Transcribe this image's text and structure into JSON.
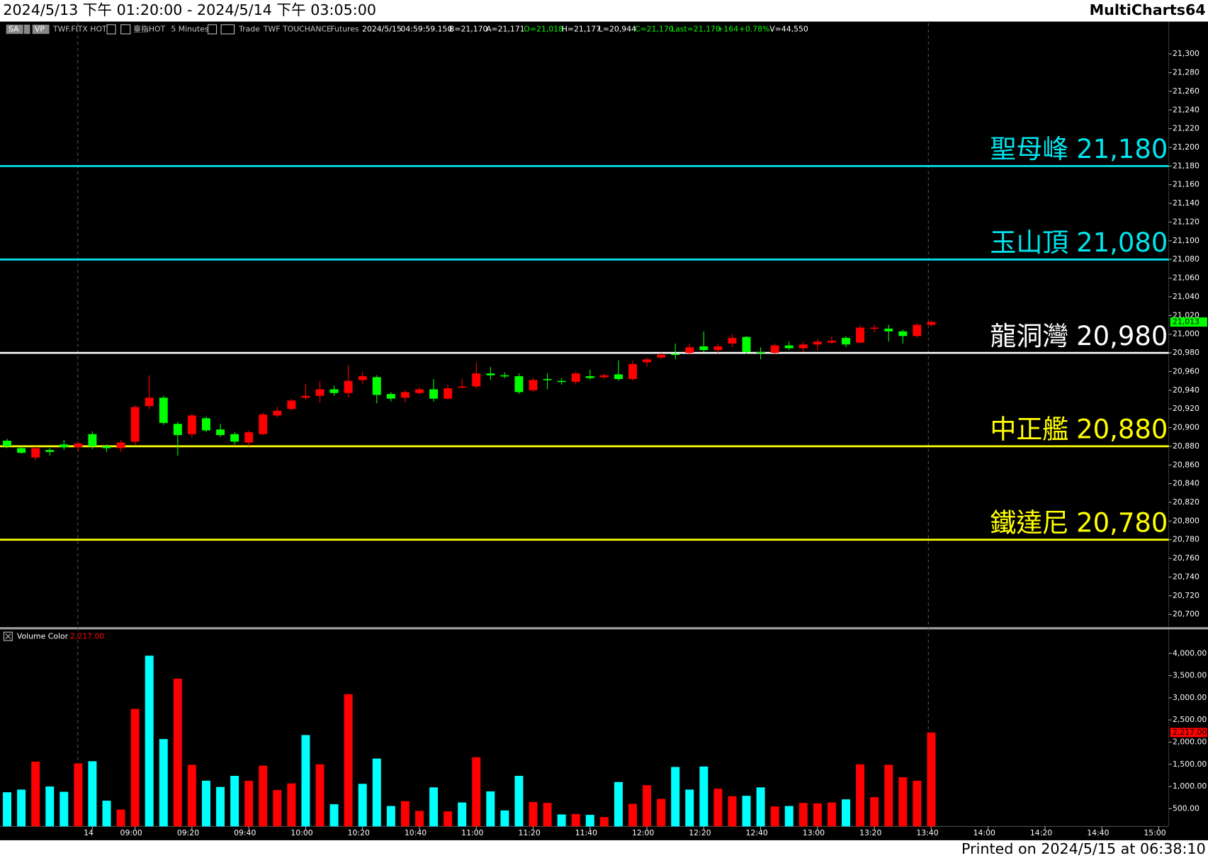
{
  "header": {
    "title": "2024/5/13 下午 01:20:00 - 2024/5/14 下午 03:05:00",
    "app": "MultiCharts64"
  },
  "footer": {
    "printed": "Printed on 2024/5/15 at 06:38:10"
  },
  "toolbar": [
    {
      "text": "SA",
      "color": "#ffffff"
    },
    {
      "text": "VP",
      "color": "#ffffff"
    },
    {
      "text": "TWF.FITX HOT",
      "color": "#c0c0c0"
    },
    {
      "text": "臺指HOT",
      "color": "#c0c0c0"
    },
    {
      "text": "5 Minutes",
      "color": "#c0c0c0"
    },
    {
      "text": "Trade",
      "color": "#c0c0c0"
    },
    {
      "text": "TWF",
      "color": "#c0c0c0"
    },
    {
      "text": "TOUCHANCE",
      "color": "#c0c0c0"
    },
    {
      "text": "Futures",
      "color": "#c0c0c0"
    },
    {
      "text": "2024/5/15",
      "color": "#ffffff"
    },
    {
      "text": "04:59:59.150",
      "color": "#ffffff"
    },
    {
      "text": "B=21,170",
      "color": "#ffffff"
    },
    {
      "text": "A=21,171",
      "color": "#ffffff"
    },
    {
      "text": "O=21,018",
      "color": "#00ff00"
    },
    {
      "text": "H=21,177",
      "color": "#ffffff"
    },
    {
      "text": "L=20,944",
      "color": "#ffffff"
    },
    {
      "text": "C=21,170",
      "color": "#00ff00"
    },
    {
      "text": "Last=21,170",
      "color": "#00ff00"
    },
    {
      "text": "+164",
      "color": "#00ff00"
    },
    {
      "text": "+0.78%",
      "color": "#00ff00"
    },
    {
      "text": "V=44,550",
      "color": "#ffffff"
    }
  ],
  "chart_data": [
    {
      "type": "candlestick",
      "up_color": "#ff0000",
      "down_color": "#00ff00",
      "open": [
        20886,
        20878,
        20868,
        20876,
        20882,
        20879,
        20893,
        20880,
        20878,
        20885,
        20923,
        20932,
        20904,
        20893,
        20910,
        20898,
        20893,
        20884,
        20893,
        20913,
        20920,
        20932,
        20934,
        20941,
        20937,
        20951,
        20954,
        20936,
        20932,
        20937,
        20941,
        20931,
        20943,
        20944,
        20958,
        20956,
        20955,
        20940,
        20952,
        20950,
        20949,
        20955,
        20954,
        20957,
        20952,
        20970,
        20975,
        20979,
        20980,
        20987,
        20983,
        20990,
        20997,
        20981,
        20980,
        20988,
        20985,
        20989,
        20991,
        20996,
        20991,
        21006,
        21006,
        21003,
        20998,
        21010
      ],
      "high": [
        20888,
        20880,
        20880,
        20878,
        20887,
        20885,
        20896,
        20882,
        20887,
        20924,
        20956,
        20934,
        20906,
        20915,
        20912,
        20904,
        20895,
        20897,
        20916,
        20922,
        20931,
        20947,
        20950,
        20945,
        20967,
        20960,
        20956,
        20938,
        20940,
        20943,
        20952,
        20946,
        20952,
        20970,
        20965,
        20959,
        20958,
        20953,
        20958,
        20953,
        20960,
        20962,
        20958,
        20972,
        20971,
        20975,
        20980,
        20990,
        20990,
        21003,
        20990,
        21000,
        20998,
        20986,
        20990,
        20992,
        20992,
        20995,
        20998,
        20998,
        21010,
        21010,
        21010,
        21005,
        21012,
        21015
      ],
      "low": [
        20878,
        20872,
        20865,
        20870,
        20876,
        20875,
        20877,
        20874,
        20874,
        20882,
        20920,
        20903,
        20870,
        20890,
        20895,
        20890,
        20882,
        20880,
        20892,
        20911,
        20918,
        20930,
        20927,
        20934,
        20932,
        20947,
        20926,
        20928,
        20927,
        20935,
        20928,
        20930,
        20942,
        20942,
        20951,
        20953,
        20936,
        20938,
        20941,
        20946,
        20946,
        20951,
        20952,
        20950,
        20950,
        20965,
        20973,
        20973,
        20978,
        20981,
        20980,
        20986,
        20979,
        20973,
        20978,
        20983,
        20981,
        20983,
        20989,
        20986,
        20990,
        21002,
        20992,
        20990,
        20996,
        21008
      ],
      "close": [
        20880,
        20873,
        20878,
        20874,
        20879,
        20883,
        20880,
        20878,
        20884,
        20922,
        20932,
        20905,
        20892,
        20913,
        20897,
        20892,
        20885,
        20895,
        20914,
        20918,
        20929,
        20934,
        20941,
        20937,
        20950,
        20955,
        20935,
        20931,
        20938,
        20941,
        20931,
        20942,
        20944,
        20958,
        20956,
        20955,
        20938,
        20951,
        20951,
        20949,
        20958,
        20953,
        20956,
        20952,
        20968,
        20973,
        20978,
        20978,
        20986,
        20983,
        20987,
        20996,
        20981,
        20980,
        20988,
        20985,
        20989,
        20992,
        20993,
        20989,
        21007,
        21007,
        21003,
        20998,
        21010,
        21013
      ],
      "last_label": "21,013",
      "last_color": "#00ff00",
      "xlim": [
        -0.5,
        81.7
      ],
      "ylim": [
        20686,
        21333
      ],
      "yticks": [
        {
          "value": 20700,
          "label": "20,700"
        },
        {
          "value": 20720,
          "label": "20,720"
        },
        {
          "value": 20740,
          "label": "20,740"
        },
        {
          "value": 20760,
          "label": "20,760"
        },
        {
          "value": 20780,
          "label": "20,780"
        },
        {
          "value": 20800,
          "label": "20,800"
        },
        {
          "value": 20820,
          "label": "20,820"
        },
        {
          "value": 20840,
          "label": "20,840"
        },
        {
          "value": 20860,
          "label": "20,860"
        },
        {
          "value": 20880,
          "label": "20,880"
        },
        {
          "value": 20900,
          "label": "20,900"
        },
        {
          "value": 20920,
          "label": "20,920"
        },
        {
          "value": 20940,
          "label": "20,940"
        },
        {
          "value": 20960,
          "label": "20,960"
        },
        {
          "value": 20980,
          "label": "20,980"
        },
        {
          "value": 21000,
          "label": "21,000"
        },
        {
          "value": 21020,
          "label": "21,020"
        },
        {
          "value": 21040,
          "label": "21,040"
        },
        {
          "value": 21060,
          "label": "21,060"
        },
        {
          "value": 21080,
          "label": "21,080"
        },
        {
          "value": 21100,
          "label": "21,100"
        },
        {
          "value": 21120,
          "label": "21,120"
        },
        {
          "value": 21140,
          "label": "21,140"
        },
        {
          "value": 21160,
          "label": "21,160"
        },
        {
          "value": 21180,
          "label": "21,180"
        },
        {
          "value": 21200,
          "label": "21,200"
        },
        {
          "value": 21220,
          "label": "21,220"
        },
        {
          "value": 21240,
          "label": "21,240"
        },
        {
          "value": 21260,
          "label": "21,260"
        },
        {
          "value": 21280,
          "label": "21,280"
        },
        {
          "value": 21300,
          "label": "21,300"
        }
      ],
      "levels": [
        {
          "name": "聖母峰",
          "value": 21180,
          "label": "21,180",
          "color": "#00e5ee"
        },
        {
          "name": "玉山頂",
          "value": 21080,
          "label": "21,080",
          "color": "#00e5ee"
        },
        {
          "name": "龍洞灣",
          "value": 20980,
          "label": "20,980",
          "color": "#ffffff"
        },
        {
          "name": "中正艦",
          "value": 20880,
          "label": "20,880",
          "color": "#ffff00"
        },
        {
          "name": "鐵達尼",
          "value": 20780,
          "label": "20,780",
          "color": "#ffff00"
        }
      ]
    },
    {
      "type": "bar",
      "name": "Volume Color",
      "last_label": "2,217.00",
      "last_color": "#ff0000",
      "values": [
        870,
        930,
        1560,
        1000,
        880,
        1520,
        1570,
        680,
        480,
        2750,
        3950,
        2070,
        3430,
        1490,
        1130,
        990,
        1240,
        1130,
        1470,
        920,
        1070,
        2160,
        1500,
        600,
        3080,
        1060,
        1630,
        560,
        670,
        450,
        980,
        440,
        640,
        1660,
        890,
        460,
        1240,
        650,
        630,
        370,
        380,
        360,
        310,
        1100,
        610,
        1030,
        720,
        1440,
        930,
        1450,
        950,
        780,
        790,
        980,
        550,
        560,
        630,
        620,
        640,
        710,
        1500,
        760,
        1490,
        1210,
        1130,
        2217
      ],
      "colors": [
        "#00ffff",
        "#00ffff",
        "#ff0000",
        "#00ffff",
        "#00ffff",
        "#ff0000",
        "#00ffff",
        "#00ffff",
        "#ff0000",
        "#ff0000",
        "#00ffff",
        "#00ffff",
        "#ff0000",
        "#ff0000",
        "#00ffff",
        "#00ffff",
        "#00ffff",
        "#ff0000",
        "#ff0000",
        "#ff0000",
        "#ff0000",
        "#00ffff",
        "#ff0000",
        "#00ffff",
        "#ff0000",
        "#00ffff",
        "#00ffff",
        "#00ffff",
        "#ff0000",
        "#ff0000",
        "#00ffff",
        "#ff0000",
        "#00ffff",
        "#ff0000",
        "#00ffff",
        "#00ffff",
        "#00ffff",
        "#ff0000",
        "#ff0000",
        "#00ffff",
        "#ff0000",
        "#00ffff",
        "#ff0000",
        "#00ffff",
        "#ff0000",
        "#ff0000",
        "#ff0000",
        "#00ffff",
        "#00ffff",
        "#00ffff",
        "#ff0000",
        "#ff0000",
        "#00ffff",
        "#00ffff",
        "#ff0000",
        "#00ffff",
        "#ff0000",
        "#ff0000",
        "#ff0000",
        "#00ffff",
        "#ff0000",
        "#ff0000",
        "#ff0000",
        "#ff0000",
        "#ff0000",
        "#ff0000"
      ],
      "xlim": [
        -0.5,
        81.7
      ],
      "ylim": [
        100,
        4550
      ],
      "yticks": [
        {
          "value": 500,
          "label": "500.00"
        },
        {
          "value": 1000,
          "label": "1,000.00"
        },
        {
          "value": 1500,
          "label": "1,500.00"
        },
        {
          "value": 2000,
          "label": "2,000.00"
        },
        {
          "value": 2500,
          "label": "2,500.00"
        },
        {
          "value": 3000,
          "label": "3,000.00"
        },
        {
          "value": 3500,
          "label": "3,500.00"
        },
        {
          "value": 4000,
          "label": "4,000.00"
        }
      ],
      "xticks": [
        {
          "value": 6,
          "label": "14"
        },
        {
          "value": 9,
          "label": "09:00"
        },
        {
          "value": 13,
          "label": "09:20"
        },
        {
          "value": 17,
          "label": "09:40"
        },
        {
          "value": 21,
          "label": "10:00"
        },
        {
          "value": 25,
          "label": "10:20"
        },
        {
          "value": 29,
          "label": "10:40"
        },
        {
          "value": 33,
          "label": "11:00"
        },
        {
          "value": 37,
          "label": "11:20"
        },
        {
          "value": 41,
          "label": "11:40"
        },
        {
          "value": 45,
          "label": "12:00"
        },
        {
          "value": 49,
          "label": "12:20"
        },
        {
          "value": 53,
          "label": "12:40"
        },
        {
          "value": 57,
          "label": "13:00"
        },
        {
          "value": 61,
          "label": "13:20"
        },
        {
          "value": 65,
          "label": "13:40"
        },
        {
          "value": 69,
          "label": "14:00"
        },
        {
          "value": 73,
          "label": "14:20"
        },
        {
          "value": 77,
          "label": "14:40"
        },
        {
          "value": 81,
          "label": "15:00"
        }
      ]
    }
  ]
}
